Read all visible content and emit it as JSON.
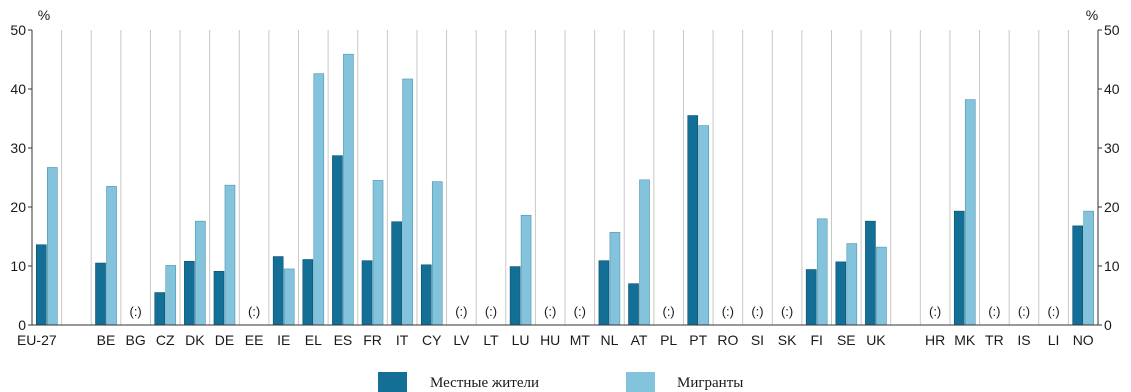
{
  "chart_data": {
    "type": "bar",
    "y_unit": "%",
    "ylim": [
      0,
      50
    ],
    "yticks": [
      0,
      10,
      20,
      30,
      40,
      50
    ],
    "grid": "vertical",
    "legend_position": "bottom",
    "na_label": "(:)",
    "colors": {
      "natives": "#136f96",
      "migrants": "#84c3dc"
    },
    "categories": [
      "EU-27",
      "BE",
      "BG",
      "CZ",
      "DK",
      "DE",
      "EE",
      "IE",
      "EL",
      "ES",
      "FR",
      "IT",
      "CY",
      "LV",
      "LT",
      "LU",
      "HU",
      "MT",
      "NL",
      "AT",
      "PL",
      "PT",
      "RO",
      "SI",
      "SK",
      "FI",
      "SE",
      "UK",
      "HR",
      "MK",
      "TR",
      "IS",
      "LI",
      "NO"
    ],
    "series": [
      {
        "name": "Местные жители",
        "values": [
          13.6,
          10.5,
          null,
          5.5,
          10.8,
          9.1,
          null,
          11.6,
          11.1,
          28.7,
          10.9,
          17.5,
          10.2,
          null,
          null,
          9.9,
          null,
          null,
          10.9,
          7.0,
          null,
          35.5,
          null,
          null,
          null,
          9.4,
          10.7,
          17.6,
          null,
          19.3,
          null,
          null,
          null,
          16.8
        ]
      },
      {
        "name": "Мигранты",
        "values": [
          26.7,
          23.5,
          null,
          10.1,
          17.6,
          23.7,
          null,
          9.5,
          42.6,
          45.9,
          24.5,
          41.7,
          24.3,
          null,
          null,
          18.6,
          null,
          null,
          15.7,
          24.6,
          null,
          33.8,
          null,
          null,
          null,
          18.0,
          13.8,
          13.2,
          null,
          38.2,
          null,
          null,
          null,
          19.3
        ]
      }
    ]
  }
}
